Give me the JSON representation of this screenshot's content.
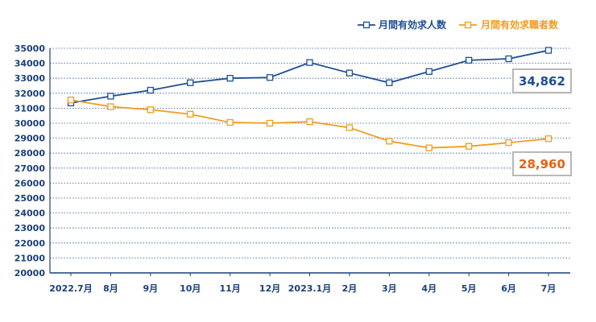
{
  "chart_data": {
    "type": "line",
    "title": "",
    "xlabel": "",
    "ylabel": "",
    "categories": [
      "2022.7月",
      "8月",
      "9月",
      "10月",
      "11月",
      "12月",
      "2023.1月",
      "2月",
      "3月",
      "4月",
      "5月",
      "6月",
      "7月"
    ],
    "ylim": [
      20000,
      35000
    ],
    "ytick_step": 1000,
    "grid": "horizontal-dotted",
    "legend_position": "top-right",
    "series": [
      {
        "name": "月間有効求人数",
        "color": "#1f4e93",
        "values": [
          31350,
          31800,
          32200,
          32700,
          33000,
          33050,
          34050,
          33350,
          32700,
          33450,
          34200,
          34300,
          34862
        ]
      },
      {
        "name": "月間有効求職者数",
        "color": "#f39c1d",
        "values": [
          31550,
          31100,
          30900,
          30600,
          30050,
          30000,
          30100,
          29700,
          28800,
          28350,
          28450,
          28700,
          28960
        ]
      }
    ],
    "annotations": [
      {
        "series": 0,
        "text": "34,862",
        "color": "#1f4e93"
      },
      {
        "series": 1,
        "text": "28,960",
        "color": "#e8620e"
      }
    ]
  }
}
